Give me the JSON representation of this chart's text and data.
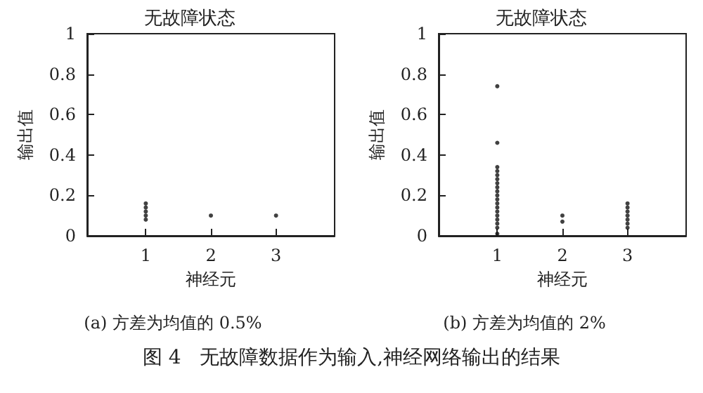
{
  "chart_data": [
    {
      "type": "scatter",
      "title": "无故障状态",
      "xlabel": "神经元",
      "ylabel": "输出值",
      "annotations": [
        "(a) 方差为均值的 0.5%"
      ],
      "xlim": [
        0.1,
        3.9
      ],
      "ylim": [
        0,
        1
      ],
      "xticks": [
        1,
        2,
        3
      ],
      "yticks": [
        0,
        0.2,
        0.4,
        0.6,
        0.8,
        1
      ],
      "grid": false,
      "marker": "circle",
      "series": [
        {
          "color": "#111111",
          "x": [
            1,
            1,
            1,
            1,
            1,
            2,
            3
          ],
          "values": [
            0.08,
            0.1,
            0.12,
            0.14,
            0.16,
            0.1,
            0.1
          ]
        }
      ]
    },
    {
      "type": "scatter",
      "title": "无故障状态",
      "xlabel": "神经元",
      "ylabel": "输出值",
      "annotations": [
        "(b) 方差为均值的 2%",
        "图 4   无故障数据作为输入,神经网络输出的结果"
      ],
      "xlim": [
        0.1,
        3.9
      ],
      "ylim": [
        0,
        1
      ],
      "xticks": [
        1,
        2,
        3
      ],
      "yticks": [
        0,
        0.2,
        0.4,
        0.6,
        0.8,
        1
      ],
      "grid": false,
      "marker": "circle",
      "series": [
        {
          "color": "#111111",
          "x": [
            1,
            1,
            1,
            1,
            1,
            1,
            1,
            1,
            1,
            1,
            1,
            1,
            1,
            1,
            1,
            1,
            1,
            1,
            1,
            2,
            2,
            3,
            3,
            3,
            3,
            3,
            3,
            3
          ],
          "values": [
            0.74,
            0.46,
            0.34,
            0.32,
            0.3,
            0.28,
            0.26,
            0.24,
            0.22,
            0.2,
            0.18,
            0.16,
            0.14,
            0.12,
            0.1,
            0.08,
            0.06,
            0.04,
            0.01,
            0.07,
            0.1,
            0.04,
            0.06,
            0.08,
            0.1,
            0.12,
            0.14,
            0.16
          ]
        }
      ]
    }
  ]
}
